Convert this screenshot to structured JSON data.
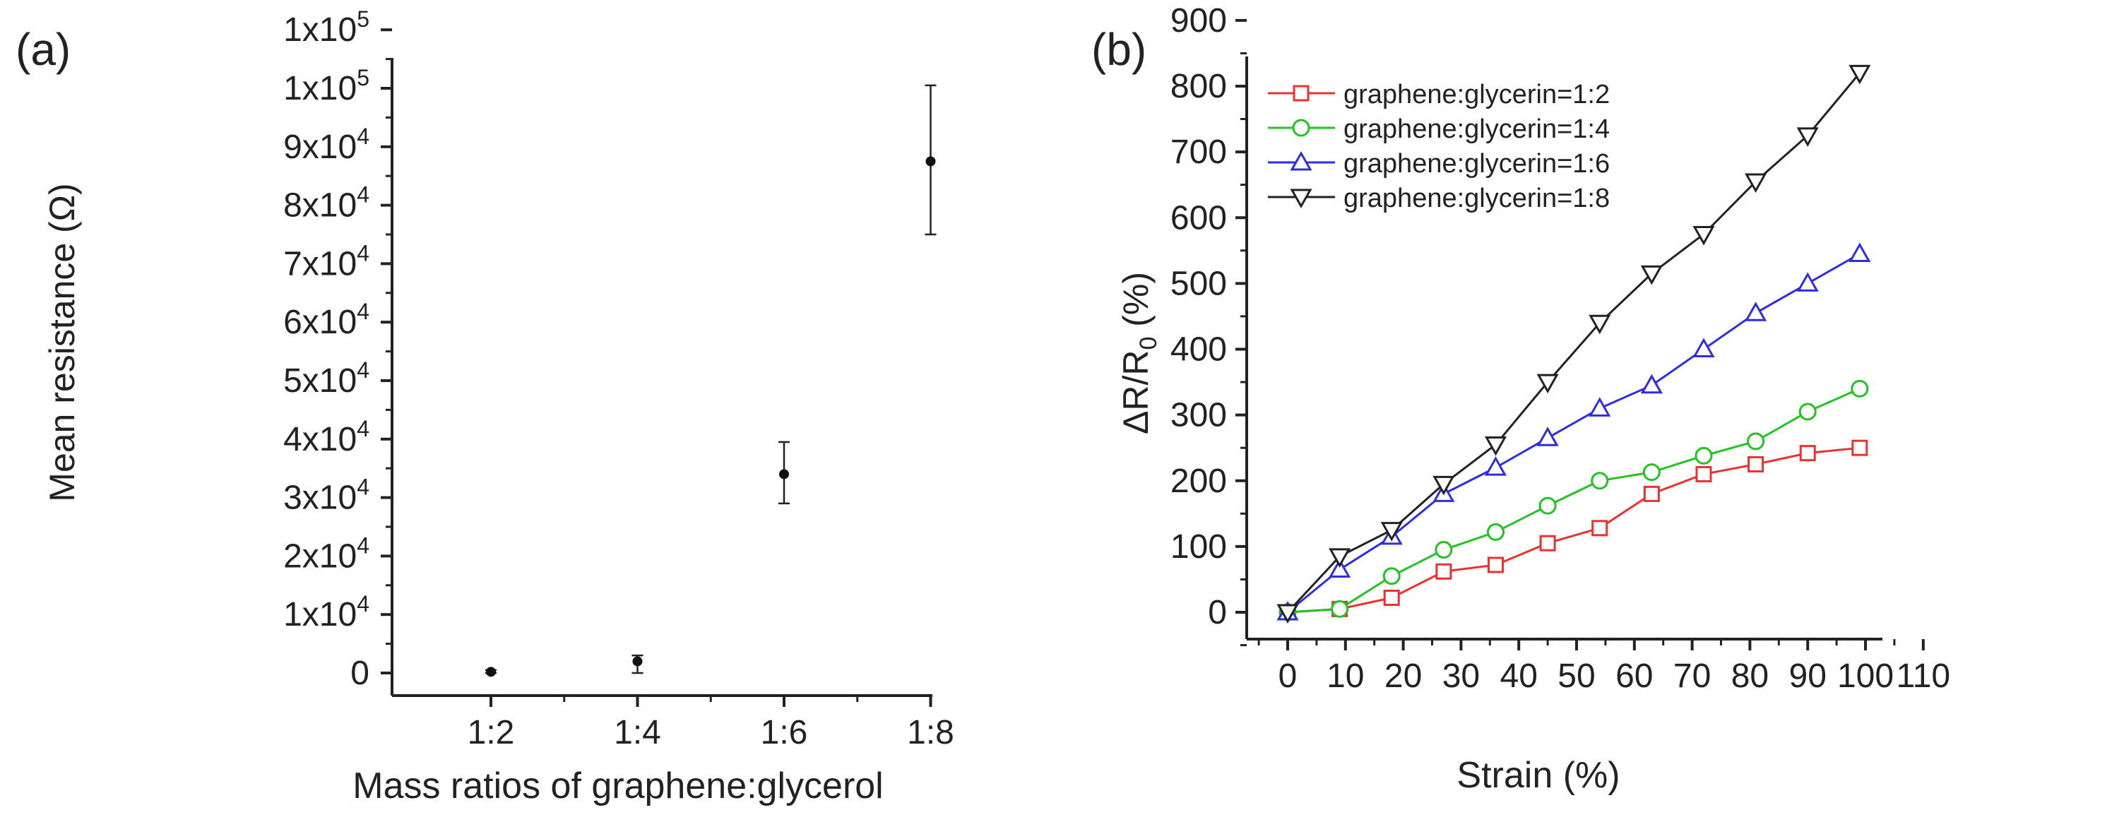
{
  "chart_data": [
    {
      "panel_label": "(a)",
      "type": "scatter",
      "title": "",
      "xlabel": "Mass ratios of graphene:glycerol",
      "ylabel": "Mean resistance (Ω)",
      "categories": [
        "1:2",
        "1:4",
        "1:6",
        "1:8"
      ],
      "ylim": [
        -5000,
        110000
      ],
      "y_ticks": [
        {
          "value": 0,
          "label": "0",
          "mantissa": "",
          "exponent": ""
        },
        {
          "value": 10000,
          "label": "1x10^4",
          "mantissa": "1x10",
          "exponent": "4"
        },
        {
          "value": 20000,
          "label": "2x10^4",
          "mantissa": "2x10",
          "exponent": "4"
        },
        {
          "value": 30000,
          "label": "3x10^4",
          "mantissa": "3x10",
          "exponent": "4"
        },
        {
          "value": 40000,
          "label": "4x10^4",
          "mantissa": "4x10",
          "exponent": "4"
        },
        {
          "value": 50000,
          "label": "5x10^4",
          "mantissa": "5x10",
          "exponent": "4"
        },
        {
          "value": 60000,
          "label": "6x10^4",
          "mantissa": "6x10",
          "exponent": "4"
        },
        {
          "value": 70000,
          "label": "7x10^4",
          "mantissa": "7x10",
          "exponent": "4"
        },
        {
          "value": 80000,
          "label": "8x10^4",
          "mantissa": "8x10",
          "exponent": "4"
        },
        {
          "value": 90000,
          "label": "9x10^4",
          "mantissa": "9x10",
          "exponent": "4"
        },
        {
          "value": 100000,
          "label": "1x10^5",
          "mantissa": "1x10",
          "exponent": "5"
        },
        {
          "value": 110000,
          "label": "1x10^5",
          "mantissa": "1x10",
          "exponent": "5"
        }
      ],
      "series": [
        {
          "name": "Mean resistance",
          "values": [
            200,
            2000,
            34000,
            87500
          ],
          "error_low": [
            0,
            0,
            29000,
            75000
          ],
          "error_high": [
            500,
            3000,
            39500,
            100500
          ]
        }
      ],
      "grid": false,
      "legend": "none"
    },
    {
      "panel_label": "(b)",
      "type": "line",
      "title": "",
      "xlabel": "Strain (%)",
      "ylabel_main": "ΔR/R",
      "ylabel_sub": "0",
      "ylabel_tail": " (%)",
      "xlim": [
        -5,
        110
      ],
      "ylim": [
        -50,
        900
      ],
      "x_ticks": [
        0,
        10,
        20,
        30,
        40,
        50,
        60,
        70,
        80,
        90,
        100,
        110
      ],
      "x_tick_labels": [
        "0",
        "10",
        "20",
        "30",
        "40",
        "50",
        "60",
        "70",
        "80",
        "90",
        "100",
        "110"
      ],
      "y_ticks": [
        0,
        100,
        200,
        300,
        400,
        500,
        600,
        700,
        800,
        900
      ],
      "x": [
        0,
        9,
        18,
        27,
        36,
        45,
        54,
        63,
        72,
        81,
        90,
        99
      ],
      "series": [
        {
          "name": "graphene:glycerin=1:2",
          "color": "#e8332e",
          "marker": "square",
          "values": [
            0,
            5,
            22,
            62,
            72,
            105,
            128,
            180,
            210,
            225,
            242,
            250
          ]
        },
        {
          "name": "graphene:glycerin=1:4",
          "color": "#22c322",
          "marker": "circle",
          "values": [
            0,
            5,
            55,
            95,
            122,
            162,
            200,
            213,
            238,
            260,
            305,
            340
          ]
        },
        {
          "name": "graphene:glycerin=1:6",
          "color": "#2e2ee0",
          "marker": "triangle-up",
          "values": [
            0,
            65,
            115,
            180,
            220,
            265,
            310,
            345,
            400,
            455,
            500,
            545
          ]
        },
        {
          "name": "graphene:glycerin=1:8",
          "color": "#222222",
          "marker": "triangle-down",
          "values": [
            0,
            85,
            125,
            195,
            255,
            350,
            440,
            515,
            575,
            655,
            725,
            820
          ]
        }
      ],
      "grid": false,
      "legend": "top-left"
    }
  ]
}
